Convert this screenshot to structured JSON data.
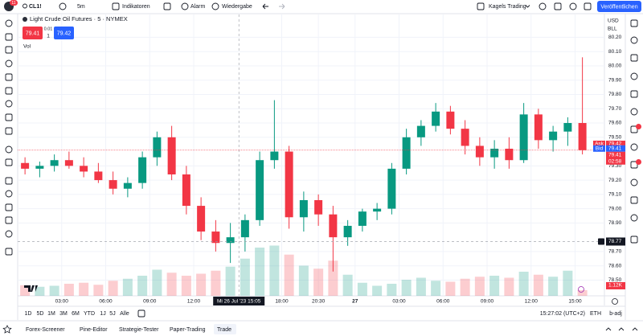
{
  "toolbar": {
    "badge": "11",
    "symbol": "CL1!",
    "interval": "5m",
    "indicators": "Indikatoren",
    "alert": "Alarm",
    "replay": "Wiedergabe",
    "layout": "Kagels Trading",
    "publish": "Veröffentlichen"
  },
  "chart_data": {
    "type": "candlestick",
    "title": "Light Crude Oil Futures · 5 · NYMEX",
    "bid": 79.41,
    "spread": 0.01,
    "quantity": 1,
    "ask": 79.42,
    "volume_title": "Vol",
    "currency": "USD",
    "unit": "BLL",
    "ask_label": "Ask",
    "bid_label": "Bid",
    "last_price": 79.41,
    "countdown": "02:58",
    "up_color": "#089981",
    "down_color": "#f23645",
    "x": [
      0.5,
      1.5,
      2.5,
      3.5,
      4.5,
      5.5,
      6.5,
      7.5,
      8.5,
      9.5,
      10.5,
      11.5,
      12.5,
      13.5,
      14.5,
      15.5,
      16.5,
      17.5,
      18.5,
      19.5,
      20.5,
      21.5,
      22.5,
      23.5,
      24.5,
      25.5,
      26.5,
      27.5,
      28.5,
      29.5,
      30.5,
      31.5,
      32.5,
      33.5,
      34.5,
      35.5,
      36.5,
      37.5,
      38.5
    ],
    "open": [
      79.32,
      79.28,
      79.3,
      79.34,
      79.3,
      79.26,
      79.2,
      79.14,
      79.18,
      79.36,
      79.5,
      79.24,
      79.02,
      78.84,
      78.76,
      78.8,
      78.92,
      79.34,
      79.4,
      78.94,
      79.06,
      78.96,
      78.8,
      78.88,
      78.98,
      79.0,
      79.28,
      79.5,
      79.58,
      79.68,
      79.56,
      79.44,
      79.36,
      79.42,
      79.34,
      79.66,
      79.48,
      79.54,
      79.6
    ],
    "high": [
      79.36,
      79.33,
      79.38,
      79.4,
      79.36,
      79.32,
      79.26,
      79.22,
      79.4,
      79.54,
      79.58,
      79.3,
      79.08,
      78.92,
      78.9,
      78.96,
      79.4,
      79.76,
      79.44,
      79.12,
      79.1,
      79.02,
      78.92,
      79.0,
      79.04,
      79.32,
      79.56,
      79.62,
      79.74,
      79.72,
      79.62,
      79.5,
      79.48,
      79.5,
      79.74,
      79.7,
      79.58,
      79.64,
      80.06
    ],
    "low": [
      79.24,
      79.22,
      79.26,
      79.28,
      79.22,
      79.18,
      79.1,
      79.08,
      79.14,
      79.3,
      79.2,
      78.96,
      78.78,
      78.7,
      78.62,
      78.7,
      78.88,
      79.28,
      78.86,
      78.84,
      78.88,
      78.56,
      78.74,
      78.84,
      78.92,
      78.96,
      79.24,
      79.44,
      79.54,
      79.52,
      79.38,
      79.3,
      79.28,
      79.28,
      79.32,
      79.42,
      79.4,
      79.44,
      79.38
    ],
    "close": [
      79.28,
      79.3,
      79.34,
      79.3,
      79.26,
      79.2,
      79.14,
      79.18,
      79.36,
      79.5,
      79.24,
      79.02,
      78.84,
      78.76,
      78.8,
      78.92,
      79.34,
      79.4,
      78.94,
      79.06,
      78.96,
      78.8,
      78.88,
      78.98,
      79.0,
      79.28,
      79.5,
      79.58,
      79.68,
      79.56,
      79.44,
      79.36,
      79.42,
      79.34,
      79.66,
      79.48,
      79.54,
      79.6,
      79.41
    ],
    "volume": [
      2.1,
      1.8,
      2.0,
      2.4,
      2.6,
      2.2,
      3.0,
      3.4,
      4.0,
      5.2,
      4.6,
      4.0,
      4.4,
      5.0,
      5.8,
      7.4,
      9.6,
      10.0,
      8.2,
      6.0,
      5.4,
      7.0,
      4.2,
      2.6,
      2.0,
      2.4,
      3.2,
      3.6,
      3.0,
      2.8,
      3.4,
      3.8,
      4.0,
      3.6,
      4.8,
      4.2,
      3.8,
      5.0,
      1.12
    ],
    "volume_lim": [
      0,
      16
    ],
    "volume_last": {
      "value": 1.12,
      "label": "1.12K"
    },
    "xlim": [
      0,
      40
    ],
    "xticks": [
      {
        "value": 3,
        "label": "03:00"
      },
      {
        "value": 6,
        "label": "06:00"
      },
      {
        "value": 9,
        "label": "09:00"
      },
      {
        "value": 12,
        "label": "12:00"
      },
      {
        "value": 18,
        "label": "18:00"
      },
      {
        "value": 20.5,
        "label": "20:30"
      },
      {
        "value": 23,
        "label": "27"
      },
      {
        "value": 26,
        "label": "03:00"
      },
      {
        "value": 29,
        "label": "06:00"
      },
      {
        "value": 32,
        "label": "09:00"
      },
      {
        "value": 35,
        "label": "12:00"
      },
      {
        "value": 38,
        "label": "15:00"
      }
    ],
    "ylim": [
      78.39,
      80.36
    ],
    "yticks": [
      {
        "value": 80.2,
        "label": "80.20"
      },
      {
        "value": 80.1,
        "label": "80.10"
      },
      {
        "value": 80.0,
        "label": "80.00"
      },
      {
        "value": 79.9,
        "label": "79.90"
      },
      {
        "value": 79.8,
        "label": "79.80"
      },
      {
        "value": 79.7,
        "label": "79.70"
      },
      {
        "value": 79.6,
        "label": "79.60"
      },
      {
        "value": 79.5,
        "label": "79.50"
      },
      {
        "value": 79.3,
        "label": "79.30"
      },
      {
        "value": 79.2,
        "label": "79.20"
      },
      {
        "value": 79.1,
        "label": "79.10"
      },
      {
        "value": 79.0,
        "label": "79.00"
      },
      {
        "value": 78.9,
        "label": "78.90"
      },
      {
        "value": 78.7,
        "label": "78.70"
      },
      {
        "value": 78.6,
        "label": "78.60"
      },
      {
        "value": 78.5,
        "label": "78.50"
      }
    ],
    "grid": true,
    "crosshair": {
      "x": {
        "value": 15.08,
        "label": "Mi 26 Jul '23  15:05"
      },
      "y": 78.77
    }
  },
  "bottom_bar": {
    "ranges": [
      "1D",
      "5D",
      "1M",
      "3M",
      "6M",
      "YTD",
      "1J",
      "5J",
      "Alle"
    ],
    "clock": "15:27:02 (UTC+2)",
    "session": "ETH",
    "adjustment": "b-adj"
  },
  "tabs": [
    "Forex-Screener",
    "Pine-Editor",
    "Strategie-Tester",
    "Paper-Trading",
    "Trade"
  ]
}
